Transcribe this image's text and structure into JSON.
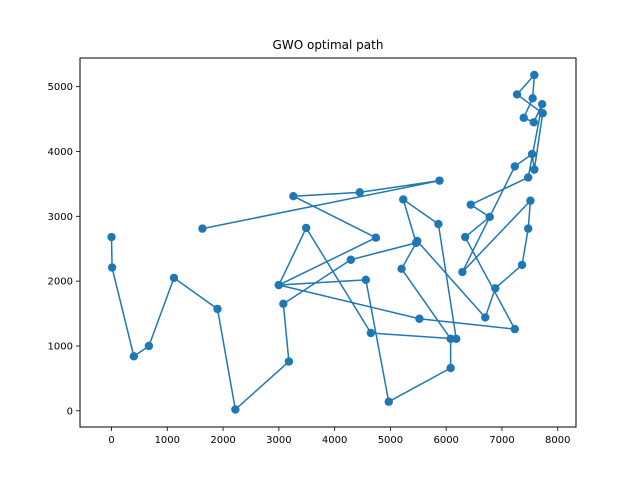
{
  "chart_data": {
    "type": "line",
    "title": "GWO optimal path",
    "xlabel": "",
    "ylabel": "",
    "xlim": [
      -565,
      8327
    ],
    "ylim": [
      -250,
      5442
    ],
    "xticks": [
      0,
      1000,
      2000,
      3000,
      4000,
      5000,
      6000,
      7000,
      8000
    ],
    "yticks": [
      0,
      1000,
      2000,
      3000,
      4000,
      5000
    ],
    "grid": false,
    "legend": "none",
    "line_color": "#1f77b4",
    "marker": "circle",
    "x": [
      0,
      10,
      400,
      670,
      1120,
      1900,
      2220,
      3180,
      3080,
      4290,
      5460,
      5230,
      5860,
      6180,
      4650,
      3490,
      3000,
      4560,
      4970,
      6080,
      6080,
      5200,
      5480,
      6700,
      6880,
      7360,
      7470,
      7510,
      6290,
      7230,
      7540,
      7580,
      7730,
      7270,
      7580,
      7550,
      7390,
      7570,
      7720,
      7470,
      6440,
      6780,
      6340,
      7230,
      5520,
      3000,
      4740,
      3260,
      4450,
      5880,
      1630
    ],
    "y": [
      2680,
      2210,
      840,
      1000,
      2050,
      1570,
      20,
      760,
      1650,
      2330,
      2590,
      3260,
      2880,
      1110,
      1200,
      2820,
      1940,
      2020,
      140,
      660,
      1110,
      2190,
      2620,
      1440,
      1890,
      2250,
      2810,
      3240,
      2140,
      3770,
      3960,
      3720,
      4590,
      4880,
      5180,
      4820,
      4520,
      4450,
      4730,
      3600,
      3180,
      2990,
      2680,
      1260,
      1420,
      1940,
      2670,
      3310,
      3370,
      3550,
      2810
    ]
  }
}
